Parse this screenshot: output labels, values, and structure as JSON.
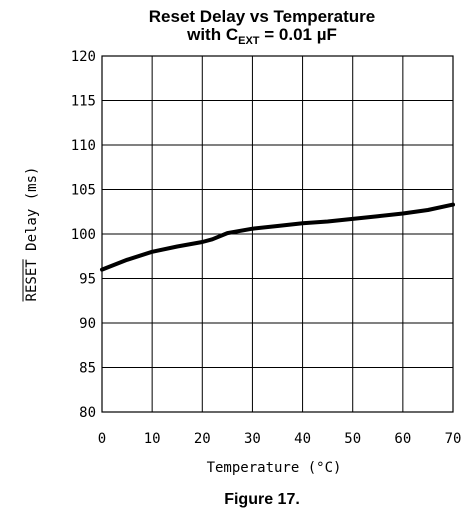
{
  "chart_data": {
    "type": "line",
    "title": "Reset Delay vs Temperature",
    "subtitle": {
      "prefix": "with C",
      "subscript": "EXT",
      "suffix": " = 0.01 µF"
    },
    "xlabel": "Temperature (°C)",
    "ylabel": {
      "overlined": "RESET",
      "rest": " Delay (ms)"
    },
    "xlim": [
      0,
      70
    ],
    "ylim": [
      80,
      120
    ],
    "xticks": [
      0,
      10,
      20,
      30,
      40,
      50,
      60,
      70
    ],
    "yticks": [
      80,
      85,
      90,
      95,
      100,
      105,
      110,
      115,
      120
    ],
    "grid": true,
    "series": [
      {
        "x": [
          0,
          5,
          10,
          15,
          20,
          22,
          25,
          30,
          35,
          40,
          45,
          50,
          55,
          60,
          65,
          70
        ],
        "y": [
          96.0,
          97.1,
          98.0,
          98.6,
          99.1,
          99.4,
          100.1,
          100.6,
          100.9,
          101.2,
          101.4,
          101.7,
          102.0,
          102.3,
          102.7,
          103.3
        ]
      }
    ]
  },
  "caption": "Figure 17."
}
